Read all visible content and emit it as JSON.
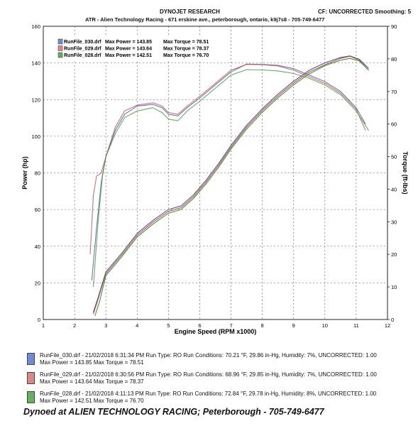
{
  "header": {
    "company": "DYNOJET RESEARCH",
    "correction": "CF: UNCORRECTED  Smoothing: 5",
    "shop": "ATR - Alien Technology Racing - 671 erskine ave., peterborough, ontario, k9j7s8 - 705-749-6477"
  },
  "chart_data": {
    "type": "line",
    "xlabel": "Engine Speed (RPM x1000)",
    "ylabel_left": "Power (hp)",
    "ylabel_right": "Torque (ft-lbs)",
    "xlim": [
      1,
      12
    ],
    "ylim_left": [
      0,
      160
    ],
    "ylim_right": [
      0,
      90
    ],
    "xticks": [
      1,
      2,
      3,
      4,
      5,
      6,
      7,
      8,
      9,
      10,
      11,
      12
    ],
    "yticks_left": [
      0,
      20,
      40,
      60,
      80,
      100,
      120,
      140,
      160
    ],
    "yticks_right": [
      0,
      10,
      20,
      30,
      40,
      50,
      60,
      70,
      80,
      90
    ],
    "grid": true,
    "legend": [
      {
        "file": "RunFile_030.drf",
        "max_power": "Max Power = 143.85",
        "max_torque": "Max Torque = 78.51",
        "color": "#6f8bd6"
      },
      {
        "file": "RunFile_029.drf",
        "max_power": "Max Power = 143.64",
        "max_torque": "Max Torque = 78.37",
        "color": "#d98a86"
      },
      {
        "file": "RunFile_028.drf",
        "max_power": "Max Power = 142.51",
        "max_torque": "Max Torque = 76.70",
        "color": "#66b060"
      }
    ],
    "series": [
      {
        "name": "RunFile_030.drf",
        "color": "#4a55a0",
        "power_hp": [
          [
            2.6,
            4
          ],
          [
            2.75,
            12
          ],
          [
            3.0,
            26
          ],
          [
            3.5,
            36
          ],
          [
            4.0,
            47
          ],
          [
            4.5,
            54
          ],
          [
            5.0,
            60
          ],
          [
            5.4,
            62
          ],
          [
            5.8,
            68
          ],
          [
            6.2,
            76
          ],
          [
            6.6,
            85
          ],
          [
            7.0,
            95
          ],
          [
            7.5,
            106
          ],
          [
            8.0,
            115
          ],
          [
            8.5,
            123
          ],
          [
            9.0,
            130
          ],
          [
            9.5,
            136
          ],
          [
            10.0,
            140
          ],
          [
            10.5,
            143
          ],
          [
            10.8,
            143.8
          ],
          [
            11.1,
            142
          ],
          [
            11.4,
            137
          ]
        ],
        "torque_ftlb": [
          [
            2.55,
            12
          ],
          [
            2.7,
            28
          ],
          [
            2.85,
            42
          ],
          [
            3.0,
            50
          ],
          [
            3.3,
            58
          ],
          [
            3.6,
            63
          ],
          [
            4.0,
            65.5
          ],
          [
            4.5,
            66
          ],
          [
            4.8,
            65
          ],
          [
            5.0,
            63
          ],
          [
            5.3,
            62.5
          ],
          [
            5.6,
            65
          ],
          [
            6.0,
            68
          ],
          [
            6.5,
            72
          ],
          [
            7.0,
            76
          ],
          [
            7.5,
            78.4
          ],
          [
            8.0,
            78.3
          ],
          [
            8.5,
            78
          ],
          [
            9.0,
            77
          ],
          [
            9.5,
            75
          ],
          [
            10.0,
            73
          ],
          [
            10.5,
            70
          ],
          [
            11.0,
            65
          ],
          [
            11.3,
            60
          ]
        ]
      },
      {
        "name": "RunFile_029.drf",
        "color": "#c05050",
        "power_hp": [
          [
            2.6,
            3
          ],
          [
            2.75,
            11
          ],
          [
            3.0,
            25
          ],
          [
            3.5,
            35
          ],
          [
            4.0,
            46
          ],
          [
            4.5,
            53
          ],
          [
            5.0,
            59
          ],
          [
            5.4,
            61
          ],
          [
            5.8,
            67
          ],
          [
            6.2,
            75
          ],
          [
            6.6,
            84
          ],
          [
            7.0,
            94
          ],
          [
            7.5,
            105
          ],
          [
            8.0,
            114
          ],
          [
            8.5,
            122
          ],
          [
            9.0,
            129
          ],
          [
            9.5,
            135
          ],
          [
            10.0,
            139
          ],
          [
            10.5,
            142.5
          ],
          [
            10.8,
            143.6
          ],
          [
            11.1,
            141.5
          ],
          [
            11.4,
            136
          ]
        ],
        "torque_ftlb": [
          [
            2.5,
            20
          ],
          [
            2.6,
            38
          ],
          [
            2.7,
            44
          ],
          [
            2.85,
            45
          ],
          [
            3.0,
            50
          ],
          [
            3.3,
            59
          ],
          [
            3.6,
            64
          ],
          [
            4.0,
            65.8
          ],
          [
            4.5,
            66.5
          ],
          [
            4.8,
            65.5
          ],
          [
            5.0,
            63.5
          ],
          [
            5.3,
            63
          ],
          [
            5.6,
            65.5
          ],
          [
            6.0,
            68.5
          ],
          [
            6.5,
            72.5
          ],
          [
            7.0,
            76.5
          ],
          [
            7.5,
            78.3
          ],
          [
            8.0,
            78.2
          ],
          [
            8.5,
            77.8
          ],
          [
            9.0,
            76.5
          ],
          [
            9.5,
            74.5
          ],
          [
            10.0,
            72.5
          ],
          [
            10.5,
            69.5
          ],
          [
            11.0,
            64.5
          ],
          [
            11.3,
            58
          ]
        ]
      },
      {
        "name": "RunFile_028.drf",
        "color": "#3f9a3f",
        "power_hp": [
          [
            2.65,
            2
          ],
          [
            2.8,
            10
          ],
          [
            3.0,
            24
          ],
          [
            3.5,
            34
          ],
          [
            4.0,
            45
          ],
          [
            4.5,
            52
          ],
          [
            5.0,
            58
          ],
          [
            5.4,
            60
          ],
          [
            5.8,
            66
          ],
          [
            6.2,
            74
          ],
          [
            6.6,
            83
          ],
          [
            7.0,
            93
          ],
          [
            7.5,
            104
          ],
          [
            8.0,
            113
          ],
          [
            8.5,
            121
          ],
          [
            9.0,
            128
          ],
          [
            9.5,
            134
          ],
          [
            10.0,
            138.5
          ],
          [
            10.5,
            141.5
          ],
          [
            10.8,
            142.5
          ],
          [
            11.1,
            141
          ],
          [
            11.4,
            136
          ]
        ],
        "torque_ftlb": [
          [
            2.6,
            10
          ],
          [
            2.75,
            30
          ],
          [
            2.9,
            45
          ],
          [
            3.0,
            50
          ],
          [
            3.3,
            57
          ],
          [
            3.6,
            62
          ],
          [
            4.0,
            64
          ],
          [
            4.5,
            65
          ],
          [
            4.8,
            63.5
          ],
          [
            5.0,
            61.5
          ],
          [
            5.3,
            61
          ],
          [
            5.6,
            64
          ],
          [
            6.0,
            67
          ],
          [
            6.5,
            71
          ],
          [
            7.0,
            75
          ],
          [
            7.5,
            76.7
          ],
          [
            8.0,
            76.6
          ],
          [
            8.5,
            76.3
          ],
          [
            9.0,
            75.5
          ],
          [
            9.5,
            74
          ],
          [
            10.0,
            72
          ],
          [
            10.5,
            69
          ],
          [
            11.0,
            64
          ],
          [
            11.4,
            58
          ]
        ]
      }
    ]
  },
  "runs": [
    {
      "line1": "RunFile_030.drf - 21/02/2018 6:31:34 PM  Run Type: RO  Run Conditions: 70.21 °F, 29.86 in-Hg,  Humidity:  7%, UNCORRECTED: 1.00",
      "line2": "Max Power = 143.85     Max Torque = 78.51",
      "color": "#6f8bd6"
    },
    {
      "line1": "RunFile_029.drf - 21/02/2018 6:30:56 PM  Run Type: RO  Run Conditions: 68.96 °F, 29.85 in-Hg,  Humidity:  7%, UNCORRECTED: 1.00",
      "line2": "Max Power = 143.64     Max Torque = 78.37",
      "color": "#d98a86"
    },
    {
      "line1": "RunFile_028.drf - 21/02/2018 4:11:13 PM  Run Type: RO  Run Conditions: 72.84 °F, 29.78 in-Hg,  Humidity:  8%, UNCORRECTED: 1.00",
      "line2": "Max Power = 142.51     Max Torque = 76.70",
      "color": "#66b060"
    }
  ],
  "footer": "Dynoed at ALIEN TECHNOLOGY RACING; Peterborough - 705-749-6477"
}
